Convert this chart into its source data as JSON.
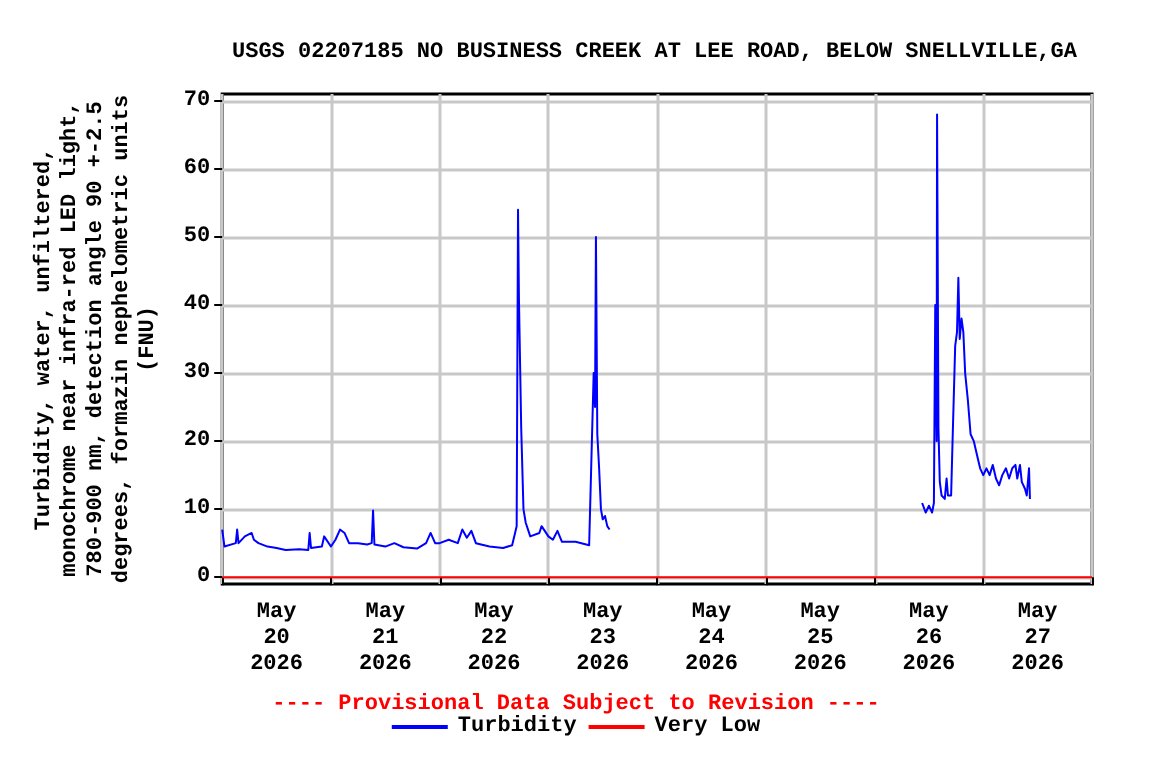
{
  "chart_data": {
    "type": "line",
    "title": "USGS 02207185 NO BUSINESS CREEK AT LEE ROAD, BELOW SNELLVILLE,GA",
    "ylabel": "Turbidity, water, unfiltered,\nmonochrome near infra-red LED light,\n780-900 nm, detection angle 90 +-2.5\ndegrees, formazin nephelometric units\n(FNU)",
    "annotations": [
      "---- Provisional Data Subject to Revision ----"
    ],
    "series": [
      {
        "name": "Turbidity",
        "color": "#0000ff",
        "x": [
          "2026-05-20T00:00",
          "2026-05-20T00:30",
          "2026-05-20T03:00",
          "2026-05-20T03:18",
          "2026-05-20T03:36",
          "2026-05-20T05:00",
          "2026-05-20T06:30",
          "2026-05-20T07:00",
          "2026-05-20T08:00",
          "2026-05-20T10:00",
          "2026-05-20T12:00",
          "2026-05-20T14:00",
          "2026-05-20T17:00",
          "2026-05-20T19:00",
          "2026-05-20T19:18",
          "2026-05-20T19:36",
          "2026-05-20T22:00",
          "2026-05-20T22:30",
          "2026-05-21T00:00",
          "2026-05-21T01:00",
          "2026-05-21T02:00",
          "2026-05-21T03:00",
          "2026-05-21T04:00",
          "2026-05-21T06:00",
          "2026-05-21T08:00",
          "2026-05-21T09:00",
          "2026-05-21T09:18",
          "2026-05-21T09:36",
          "2026-05-21T12:00",
          "2026-05-21T14:00",
          "2026-05-21T16:00",
          "2026-05-21T19:00",
          "2026-05-21T21:00",
          "2026-05-21T22:00",
          "2026-05-21T23:00",
          "2026-05-22T00:00",
          "2026-05-22T02:00",
          "2026-05-22T04:00",
          "2026-05-22T05:00",
          "2026-05-22T06:00",
          "2026-05-22T07:00",
          "2026-05-22T08:00",
          "2026-05-22T11:00",
          "2026-05-22T14:00",
          "2026-05-22T16:00",
          "2026-05-22T17:00",
          "2026-05-22T17:18",
          "2026-05-22T17:30",
          "2026-05-22T18:00",
          "2026-05-22T18:30",
          "2026-05-22T19:00",
          "2026-05-22T20:00",
          "2026-05-22T22:00",
          "2026-05-22T22:30",
          "2026-05-23T00:00",
          "2026-05-23T01:00",
          "2026-05-23T02:00",
          "2026-05-23T03:00",
          "2026-05-23T06:00",
          "2026-05-23T09:00",
          "2026-05-23T10:00",
          "2026-05-23T10:18",
          "2026-05-23T10:30",
          "2026-05-23T10:48",
          "2026-05-23T11:12",
          "2026-05-23T11:36",
          "2026-05-23T12:00",
          "2026-05-23T12:30",
          "2026-05-23T13:00",
          "2026-05-23T13:30",
          "2026-05-25T00:00",
          "2026-05-26T10:30",
          "2026-05-26T11:18",
          "2026-05-26T12:00",
          "2026-05-26T12:42",
          "2026-05-26T13:06",
          "2026-05-26T13:24",
          "2026-05-26T13:42",
          "2026-05-26T13:48",
          "2026-05-26T14:06",
          "2026-05-26T14:24",
          "2026-05-26T14:48",
          "2026-05-26T15:30",
          "2026-05-26T15:54",
          "2026-05-26T16:12",
          "2026-05-26T16:54",
          "2026-05-26T17:18",
          "2026-05-26T17:48",
          "2026-05-26T18:12",
          "2026-05-26T18:30",
          "2026-05-26T18:48",
          "2026-05-26T19:12",
          "2026-05-26T19:36",
          "2026-05-26T20:00",
          "2026-05-26T20:36",
          "2026-05-26T21:12",
          "2026-05-26T21:54",
          "2026-05-26T22:36",
          "2026-05-26T23:18",
          "2026-05-27T00:00",
          "2026-05-27T00:42",
          "2026-05-27T01:24",
          "2026-05-27T02:06",
          "2026-05-27T02:48",
          "2026-05-27T03:30",
          "2026-05-27T04:12",
          "2026-05-27T05:00",
          "2026-05-27T05:42",
          "2026-05-27T06:24",
          "2026-05-27T07:06",
          "2026-05-27T07:30",
          "2026-05-27T08:06",
          "2026-05-27T08:30",
          "2026-05-27T09:12",
          "2026-05-27T09:36",
          "2026-05-27T10:06",
          "2026-05-27T10:18"
        ],
        "values": [
          7.0,
          4.5,
          5.0,
          7.0,
          5.0,
          6.0,
          6.5,
          5.5,
          5.0,
          4.5,
          4.3,
          4.0,
          4.1,
          4.0,
          6.5,
          4.3,
          4.5,
          6.0,
          4.5,
          5.5,
          7.0,
          6.5,
          5.0,
          5.0,
          4.8,
          5.0,
          9.8,
          4.8,
          4.5,
          5.0,
          4.4,
          4.2,
          5.0,
          6.5,
          5.0,
          5.0,
          5.5,
          5.0,
          7.0,
          5.8,
          6.8,
          5.0,
          4.5,
          4.3,
          4.7,
          7.5,
          54,
          41,
          22,
          10,
          8,
          6,
          6.5,
          7.5,
          6,
          5.5,
          6.8,
          5.2,
          5.2,
          4.7,
          30,
          25,
          50,
          21,
          16,
          10,
          8.5,
          9,
          7.5,
          7,
          null,
          10.9,
          9.5,
          10.5,
          9.5,
          10.9,
          40,
          20,
          68,
          22,
          14,
          12,
          11.5,
          14.5,
          12,
          12,
          22,
          34,
          36,
          44,
          35,
          38,
          36,
          30,
          26,
          21,
          20,
          18,
          16,
          15,
          16,
          15,
          16.5,
          14.5,
          13.5,
          15,
          16,
          14.5,
          16,
          16.5,
          14.5,
          16.5,
          14,
          13,
          12,
          16,
          11.5
        ]
      },
      {
        "name": "Very Low",
        "color": "#ff0000",
        "x": [
          "2026-05-20T00:00",
          "2026-05-28T00:00"
        ],
        "values": [
          0,
          0
        ]
      }
    ],
    "xlim": [
      "2026-05-20T00:00",
      "2026-05-28T00:00"
    ],
    "xticks": [
      {
        "value": "2026-05-20T00:00",
        "label": null
      },
      {
        "value": "2026-05-20T12:00",
        "label": "May\n20\n2026"
      },
      {
        "value": "2026-05-21T00:00",
        "label": null
      },
      {
        "value": "2026-05-21T12:00",
        "label": "May\n21\n2026"
      },
      {
        "value": "2026-05-22T00:00",
        "label": null
      },
      {
        "value": "2026-05-22T12:00",
        "label": "May\n22\n2026"
      },
      {
        "value": "2026-05-23T00:00",
        "label": null
      },
      {
        "value": "2026-05-23T12:00",
        "label": "May\n23\n2026"
      },
      {
        "value": "2026-05-24T00:00",
        "label": null
      },
      {
        "value": "2026-05-24T12:00",
        "label": "May\n24\n2026"
      },
      {
        "value": "2026-05-25T00:00",
        "label": null
      },
      {
        "value": "2026-05-25T12:00",
        "label": "May\n25\n2026"
      },
      {
        "value": "2026-05-26T00:00",
        "label": null
      },
      {
        "value": "2026-05-26T12:00",
        "label": "May\n26\n2026"
      },
      {
        "value": "2026-05-27T00:00",
        "label": null
      },
      {
        "value": "2026-05-27T12:00",
        "label": "May\n27\n2026"
      },
      {
        "value": "2026-05-28T00:00",
        "label": null
      }
    ],
    "ylim": [
      -1,
      71
    ],
    "yticks": [
      0,
      10,
      20,
      30,
      40,
      50,
      60,
      70
    ],
    "grid": true,
    "legend": "bottom",
    "marker": "none",
    "line_style": "solid"
  }
}
